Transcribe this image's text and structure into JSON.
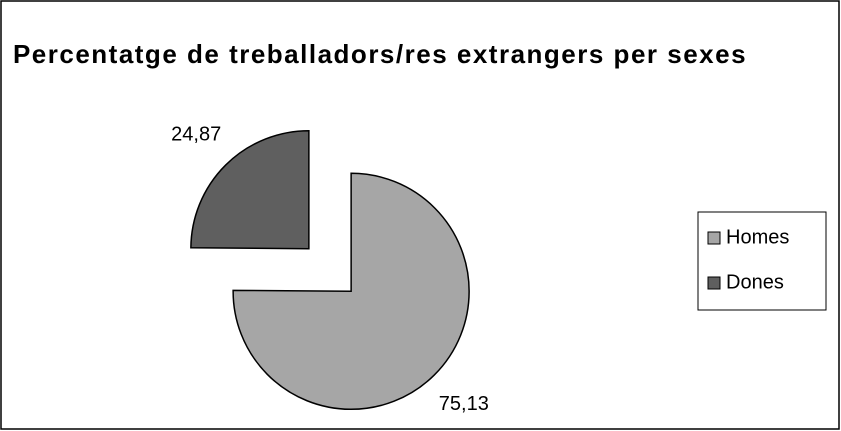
{
  "chart_data": {
    "type": "pie",
    "title": "Percentatge de treballadors/res extrangers per sexes",
    "categories": [
      "Homes",
      "Dones"
    ],
    "values": [
      75.13,
      24.87
    ],
    "value_labels": [
      "75,13",
      "24,87"
    ],
    "colors": [
      "#a6a6a6",
      "#5f5f5f"
    ],
    "legend": "right"
  }
}
